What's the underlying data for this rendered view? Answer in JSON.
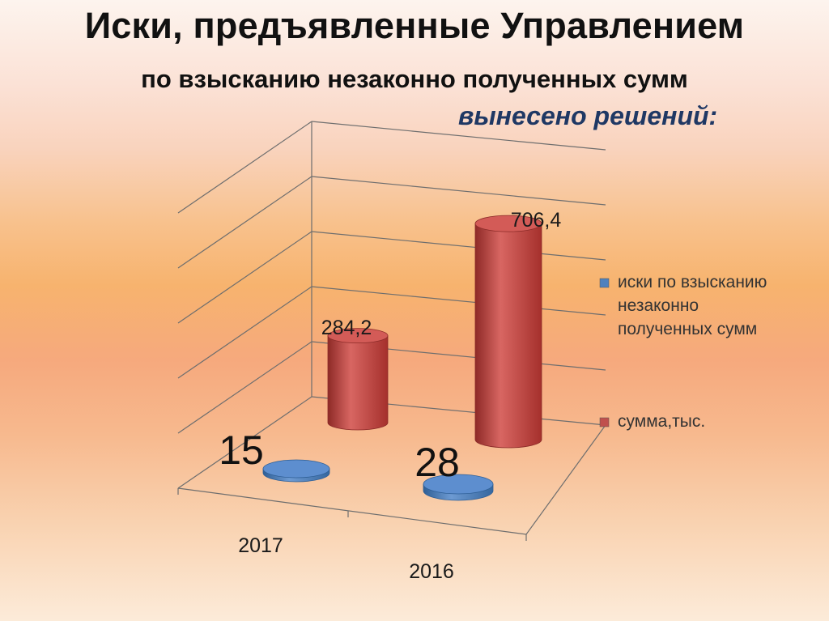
{
  "slide": {
    "title": "Иски, предъявленные Управлением",
    "subtitle": "по взысканию незаконно полученных сумм",
    "verdict": "вынесено решений:"
  },
  "chart_data": {
    "type": "bar",
    "style": "3d-cylinder",
    "categories": [
      "2017",
      "2016"
    ],
    "series": [
      {
        "name": "иски по взысканию незаконно полученных сумм",
        "name_lines": [
          "иски по взысканию",
          "незаконно",
          "полученных сумм"
        ],
        "values": [
          15,
          28
        ],
        "labels": [
          "15",
          "28"
        ],
        "color": "#4f81bd"
      },
      {
        "name": "сумма,тыс.",
        "name_lines": [
          "сумма,тыс."
        ],
        "values": [
          284.2,
          706.4
        ],
        "labels": [
          "284,2",
          "706,4"
        ],
        "color": "#c0504d"
      }
    ],
    "grid": true,
    "legend": "right"
  }
}
